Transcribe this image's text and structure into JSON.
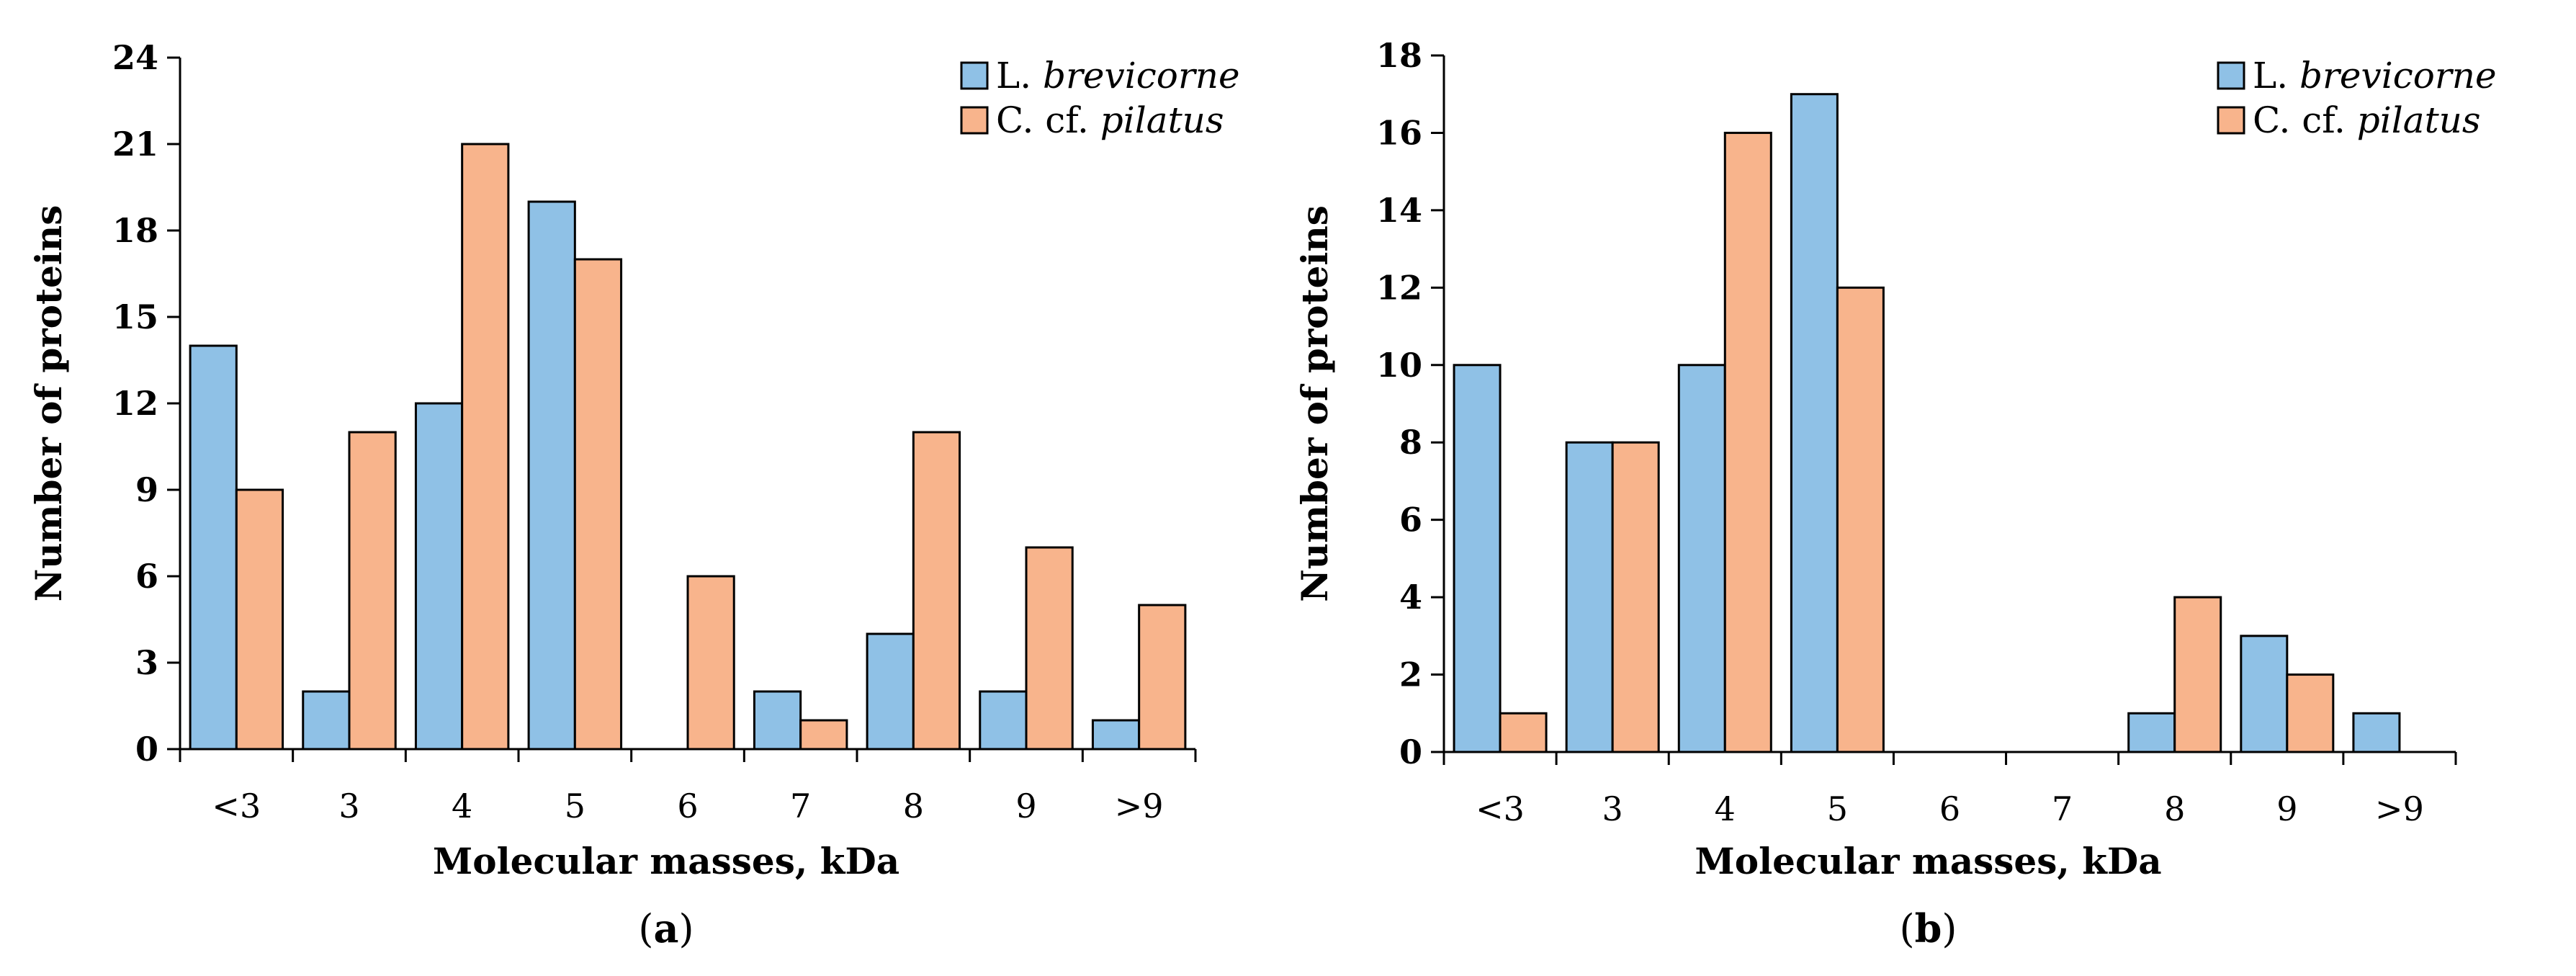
{
  "chart_data": [
    {
      "type": "bar",
      "panel_label": "(a)",
      "categories": [
        "<3",
        "3",
        "4",
        "5",
        "6",
        "7",
        "8",
        "9",
        ">9"
      ],
      "series": [
        {
          "name": "L. brevicorne",
          "name_prefix": "L. ",
          "name_italic": "brevicorne",
          "color": "#8FC1E6",
          "values": [
            14,
            2,
            12,
            19,
            0,
            2,
            4,
            2,
            1
          ]
        },
        {
          "name": "C. cf. pilatus",
          "name_prefix": "C. cf. ",
          "name_italic": "pilatus",
          "color": "#F8B48C",
          "values": [
            9,
            11,
            21,
            17,
            6,
            1,
            11,
            7,
            5
          ]
        }
      ],
      "xlabel": "Molecular masses, kDa",
      "ylabel": "Number of proteins",
      "ylim": [
        0,
        24
      ],
      "yticks": [
        "0",
        "3",
        "6",
        "9",
        "12",
        "15",
        "18",
        "21",
        "24"
      ],
      "legend": "top-right",
      "grid": false
    },
    {
      "type": "bar",
      "panel_label": "(b)",
      "categories": [
        "<3",
        "3",
        "4",
        "5",
        "6",
        "7",
        "8",
        "9",
        ">9"
      ],
      "series": [
        {
          "name": "L. brevicorne",
          "name_prefix": "L. ",
          "name_italic": "brevicorne",
          "color": "#8FC1E6",
          "values": [
            10,
            8,
            10,
            17,
            0,
            0,
            1,
            3,
            1
          ]
        },
        {
          "name": "C. cf. pilatus",
          "name_prefix": "C. cf. ",
          "name_italic": "pilatus",
          "color": "#F8B48C",
          "values": [
            1,
            8,
            16,
            12,
            0,
            0,
            4,
            2,
            0
          ]
        }
      ],
      "xlabel": "Molecular masses, kDa",
      "ylabel": "Number of proteins",
      "ylim": [
        0,
        18
      ],
      "yticks": [
        "0",
        "2",
        "4",
        "6",
        "8",
        "10",
        "12",
        "14",
        "16",
        "18"
      ],
      "legend": "top-right",
      "grid": false
    }
  ]
}
